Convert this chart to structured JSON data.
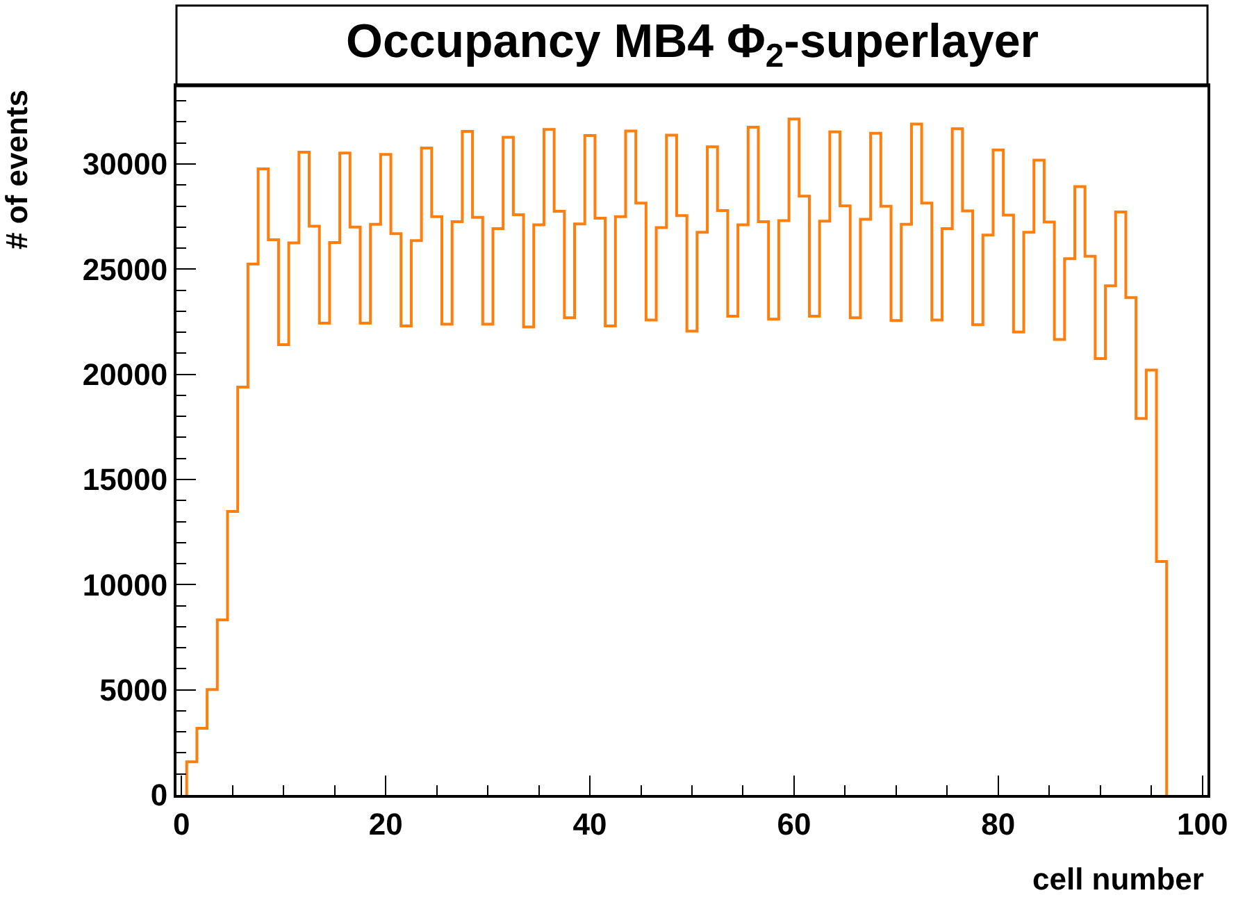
{
  "chart_data": {
    "type": "histogram",
    "title": "Occupancy MB4 Φ$_{2}$-superlayer",
    "xlabel": "cell number",
    "ylabel": "# of events",
    "bins": [
      0.5,
      1.5,
      2.5,
      3.5,
      4.5,
      5.5,
      6.5,
      7.5,
      8.5,
      9.5,
      10.5,
      11.5,
      12.5,
      13.5,
      14.5,
      15.5,
      16.5,
      17.5,
      18.5,
      19.5,
      20.5,
      21.5,
      22.5,
      23.5,
      24.5,
      25.5,
      26.5,
      27.5,
      28.5,
      29.5,
      30.5,
      31.5,
      32.5,
      33.5,
      34.5,
      35.5,
      36.5,
      37.5,
      38.5,
      39.5,
      40.5,
      41.5,
      42.5,
      43.5,
      44.5,
      45.5,
      46.5,
      47.5,
      48.5,
      49.5,
      50.5,
      51.5,
      52.5,
      53.5,
      54.5,
      55.5,
      56.5,
      57.5,
      58.5,
      59.5,
      60.5,
      61.5,
      62.5,
      63.5,
      64.5,
      65.5,
      66.5,
      67.5,
      68.5,
      69.5,
      70.5,
      71.5,
      72.5,
      73.5,
      74.5,
      75.5,
      76.5,
      77.5,
      78.5,
      79.5,
      80.5,
      81.5,
      82.5,
      83.5,
      84.5,
      85.5,
      86.5,
      87.5,
      88.5,
      89.5,
      90.5,
      91.5,
      92.5,
      93.5,
      94.5,
      95.5,
      96.5
    ],
    "values": [
      1580,
      3170,
      5010,
      8330,
      13480,
      19390,
      25240,
      29770,
      26400,
      21410,
      26250,
      30560,
      27040,
      22430,
      26270,
      30520,
      27000,
      22430,
      27130,
      30450,
      26690,
      22300,
      26360,
      30760,
      27500,
      22380,
      27260,
      31550,
      27460,
      22380,
      26930,
      31270,
      27590,
      22250,
      27110,
      31640,
      27750,
      22690,
      27150,
      31350,
      27420,
      22300,
      27500,
      31570,
      28140,
      22580,
      26980,
      31370,
      27550,
      22050,
      26750,
      30820,
      27790,
      22760,
      27110,
      31750,
      27260,
      22620,
      27310,
      32140,
      28470,
      22760,
      27280,
      31530,
      28010,
      22690,
      27370,
      31460,
      27990,
      22560,
      27130,
      31900,
      28140,
      22580,
      26930,
      31680,
      27770,
      22360,
      26620,
      30670,
      27570,
      22010,
      26750,
      30180,
      27240,
      21660,
      25500,
      28930,
      25610,
      20750,
      24210,
      27720,
      23650,
      17900,
      20200,
      11100
    ],
    "color": "#ff7f0e",
    "xlim": [
      -0.5,
      100.5
    ],
    "ylim": [
      0,
      33700
    ],
    "xticks": [
      0,
      20,
      40,
      60,
      80,
      100
    ],
    "yticks": [
      0,
      5000,
      10000,
      15000,
      20000,
      25000,
      30000
    ]
  }
}
